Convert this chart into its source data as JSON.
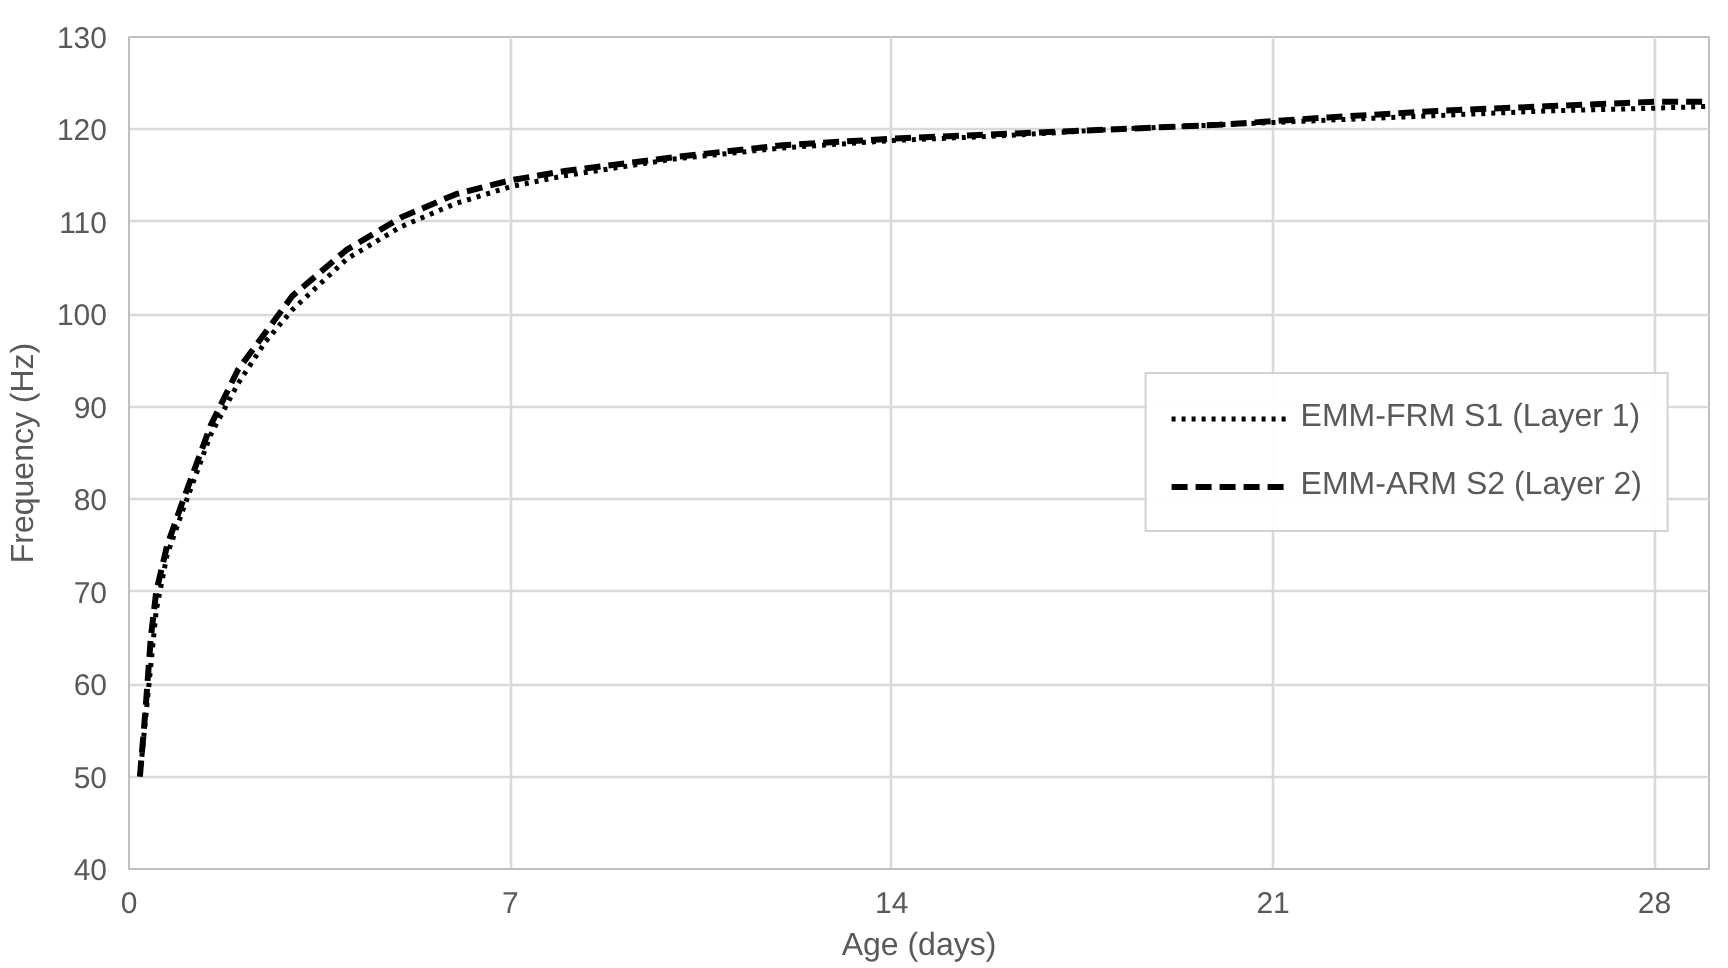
{
  "chart_data": {
    "type": "line",
    "xlabel": "Age (days)",
    "ylabel": "Frequency (Hz)",
    "xlim": [
      0,
      29
    ],
    "xticks": [
      0,
      7,
      14,
      21,
      28
    ],
    "ylim": [
      40,
      130
    ],
    "yticks": [
      40,
      50,
      60,
      70,
      80,
      90,
      100,
      110,
      120,
      130
    ],
    "grid": true,
    "legend": "right",
    "series": [
      {
        "name": "EMM-FRM S1 (Layer 1)",
        "color": "#000000",
        "line_style": "dotted",
        "x": [
          0.2,
          0.3,
          0.5,
          0.7,
          1,
          1.5,
          2,
          2.5,
          3,
          4,
          5,
          6,
          7,
          8,
          10,
          12,
          14,
          16,
          18,
          20,
          22,
          24,
          26,
          28,
          29
        ],
        "values": [
          50,
          56,
          68,
          74,
          79,
          87,
          92.5,
          97,
          100.5,
          106,
          109.5,
          112,
          113.8,
          115,
          116.8,
          118,
          118.8,
          119.3,
          120,
          120.5,
          121,
          121.5,
          122,
          122.3,
          122.5
        ]
      },
      {
        "name": "EMM-ARM S2 (Layer 2)",
        "color": "#000000",
        "line_style": "dashed",
        "x": [
          0.2,
          0.3,
          0.4,
          0.5,
          0.7,
          1,
          1.5,
          2,
          2.5,
          3,
          4,
          5,
          6,
          7,
          8,
          10,
          12,
          14,
          16,
          18,
          20,
          22,
          24,
          26,
          28,
          29
        ],
        "values": [
          50,
          57,
          65,
          70,
          75,
          80,
          88,
          94,
          98,
          102,
          107,
          110.5,
          113,
          114.5,
          115.5,
          117,
          118.3,
          119,
          119.5,
          120,
          120.5,
          121.3,
          122,
          122.5,
          123,
          123
        ]
      }
    ]
  }
}
